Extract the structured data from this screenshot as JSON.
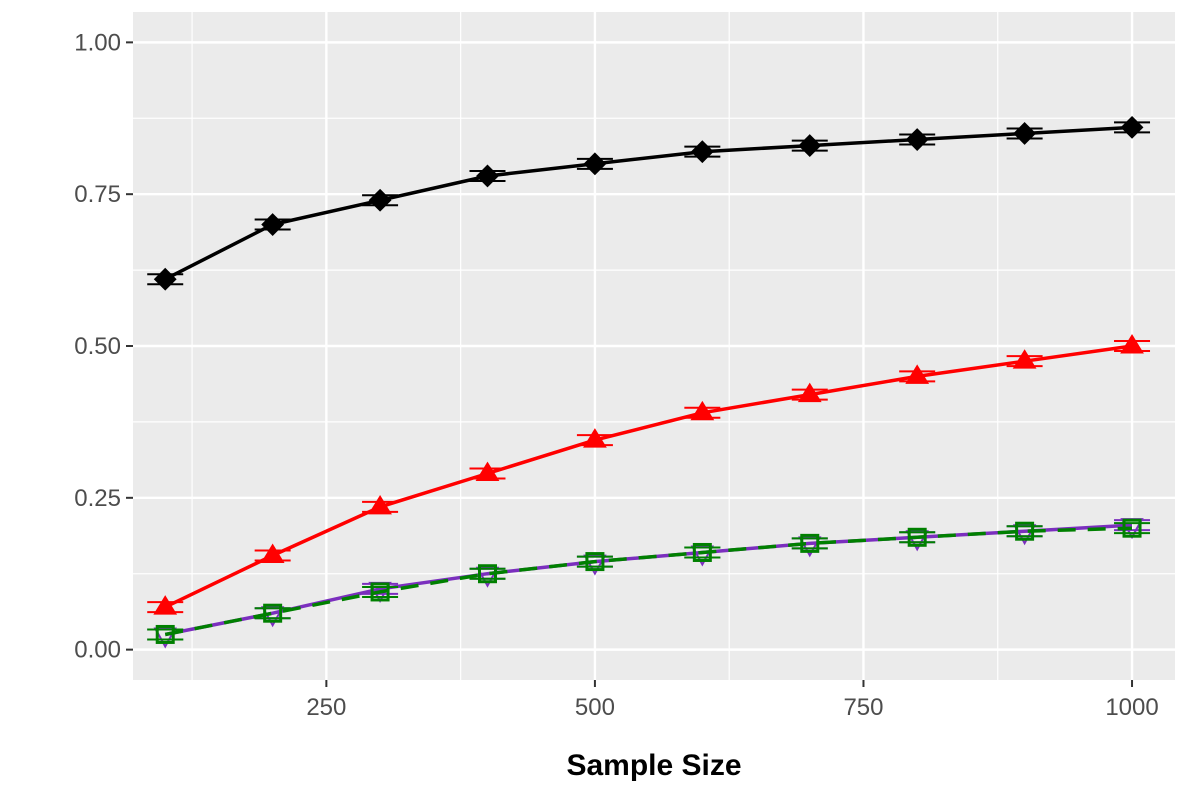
{
  "chart_data": {
    "type": "line",
    "title": "",
    "xlabel": "Sample Size",
    "ylabel": "",
    "xlim": [
      70,
      1040
    ],
    "ylim": [
      -0.05,
      1.05
    ],
    "x_ticks": [
      250,
      500,
      750,
      1000
    ],
    "x_tick_labels": [
      "250",
      "500",
      "750",
      "1000"
    ],
    "y_ticks": [
      0.0,
      0.25,
      0.5,
      0.75,
      1.0
    ],
    "y_tick_labels": [
      "0.00",
      "0.25",
      "0.50",
      "0.75",
      "1.00"
    ],
    "x": [
      100,
      200,
      300,
      400,
      500,
      600,
      700,
      800,
      900,
      1000
    ],
    "grid": true,
    "panel_background": "#ebebeb",
    "grid_color": "#ffffff",
    "legend": "none",
    "series": [
      {
        "color": "#000000",
        "line": "solid",
        "marker": "diamond",
        "values": [
          0.61,
          0.7,
          0.74,
          0.78,
          0.8,
          0.82,
          0.83,
          0.84,
          0.85,
          0.86
        ]
      },
      {
        "color": "#ff0000",
        "line": "solid",
        "marker": "triangle",
        "values": [
          0.07,
          0.155,
          0.235,
          0.29,
          0.345,
          0.39,
          0.42,
          0.45,
          0.475,
          0.5
        ]
      },
      {
        "color": "#7b2fbe",
        "line": "solid",
        "marker": "open-triangle-down",
        "values": [
          0.025,
          0.06,
          0.1,
          0.125,
          0.145,
          0.16,
          0.175,
          0.185,
          0.195,
          0.205
        ]
      },
      {
        "color": "#008000",
        "line": "dashed",
        "marker": "open-square",
        "values": [
          0.025,
          0.06,
          0.095,
          0.125,
          0.145,
          0.16,
          0.175,
          0.185,
          0.195,
          0.2
        ]
      }
    ]
  }
}
